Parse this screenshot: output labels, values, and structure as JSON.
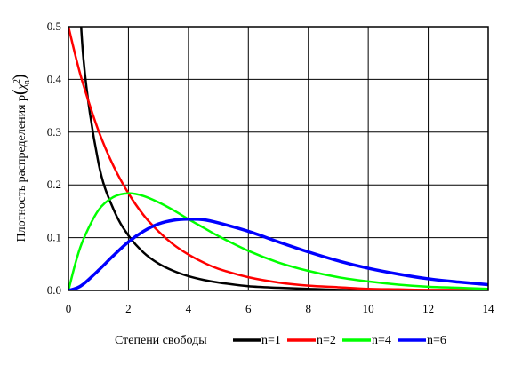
{
  "chart_data": {
    "type": "line",
    "xlabel": "Степени свободы",
    "ylabel_prefix": "Плотность распределения p",
    "ylabel_symbol": "χ",
    "ylabel_sup": "2",
    "ylabel_sub": "n",
    "xlim": [
      0,
      14
    ],
    "ylim": [
      0,
      0.5
    ],
    "x_ticks": [
      "0",
      "2",
      "4",
      "6",
      "8",
      "10",
      "12",
      "14"
    ],
    "y_ticks": [
      "0.0",
      "0.1",
      "0.2",
      "0.3",
      "0.4",
      "0.5"
    ],
    "grid": true,
    "legend_position": "bottom",
    "x": [
      0,
      0.25,
      0.5,
      1,
      1.5,
      2,
      2.5,
      3,
      3.5,
      4,
      4.5,
      5,
      6,
      7,
      8,
      9,
      10,
      11,
      12,
      13,
      14
    ],
    "series": [
      {
        "name": "n=1",
        "color": "#000000",
        "values": [
          null,
          0.704,
          0.439,
          0.242,
          0.154,
          0.104,
          0.072,
          0.051,
          0.037,
          0.027,
          0.02,
          0.015,
          0.008,
          0.005,
          0.003,
          0.001,
          0.001,
          0.0,
          0.0,
          0.0,
          0.0
        ]
      },
      {
        "name": "n=2",
        "color": "#ff0000",
        "values": [
          0.5,
          0.441,
          0.389,
          0.303,
          0.236,
          0.184,
          0.143,
          0.112,
          0.087,
          0.068,
          0.053,
          0.041,
          0.025,
          0.015,
          0.009,
          0.006,
          0.003,
          0.002,
          0.001,
          0.001,
          0.0
        ]
      },
      {
        "name": "n=4",
        "color": "#00ff00",
        "values": [
          0,
          0.055,
          0.097,
          0.152,
          0.177,
          0.184,
          0.179,
          0.167,
          0.152,
          0.135,
          0.119,
          0.103,
          0.075,
          0.053,
          0.037,
          0.025,
          0.017,
          0.011,
          0.007,
          0.005,
          0.003
        ]
      },
      {
        "name": "n=6",
        "color": "#0000ff",
        "values": [
          0,
          0.004,
          0.012,
          0.038,
          0.066,
          0.092,
          0.112,
          0.126,
          0.133,
          0.135,
          0.134,
          0.128,
          0.112,
          0.092,
          0.073,
          0.056,
          0.042,
          0.031,
          0.022,
          0.016,
          0.011
        ]
      }
    ]
  }
}
